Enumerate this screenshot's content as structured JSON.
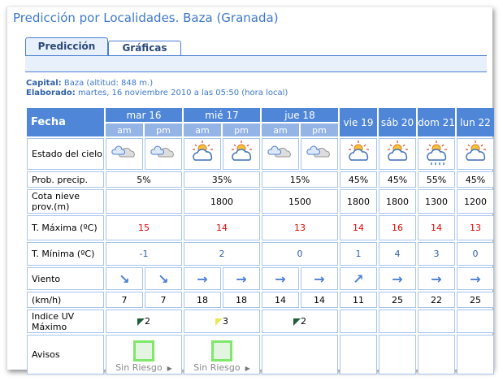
{
  "title": "Predicción por Localidades. Baza (Granada)",
  "tabs": [
    "Predicción",
    "Gráficas"
  ],
  "capital_label": "Capital:",
  "capital_value": "Baza (altitud: 848 m.)",
  "elaborado_label": "Elaborado:",
  "elaborado_value": "martes, 16 noviembre 2010 a las 05:50 (hora local)",
  "fecha_label": "Fecha",
  "days": [
    {
      "label": "mar 16",
      "split": true,
      "sub": [
        "am",
        "pm"
      ]
    },
    {
      "label": "mié 17",
      "split": true,
      "sub": [
        "am",
        "pm"
      ]
    },
    {
      "label": "jue 18",
      "split": true,
      "sub": [
        "am",
        "pm"
      ]
    },
    {
      "label": "vie 19"
    },
    {
      "label": "sáb 20"
    },
    {
      "label": "dom 21"
    },
    {
      "label": "lun 22"
    }
  ],
  "rows": {
    "sky": {
      "label": "Estado del cielo",
      "values": [
        "cloudy",
        "cloudy",
        "sun-cloud",
        "sun-cloud",
        "cloudy",
        "cloudy",
        "sun-cloud",
        "sun-cloud",
        "sun-cloud-rain",
        "sun-cloud"
      ]
    },
    "precip": {
      "label": "Prob. precip.",
      "values": [
        "5%",
        "35%",
        "15%",
        "45%",
        "45%",
        "55%",
        "45%"
      ]
    },
    "snow": {
      "label": "Cota nieve prov.(m)",
      "values": [
        "",
        "1800",
        "1500",
        "1800",
        "1800",
        "1300",
        "1200"
      ]
    },
    "tmax": {
      "label": "T. Máxima (ºC)",
      "values": [
        "15",
        "14",
        "13",
        "14",
        "16",
        "14",
        "13"
      ]
    },
    "tmin": {
      "label": "T. Mínima (ºC)",
      "values": [
        "-1",
        "2",
        "0",
        "1",
        "4",
        "3",
        "0"
      ]
    },
    "wind": {
      "label": "Viento",
      "values": [
        "↘",
        "↘",
        "→",
        "→",
        "→",
        "→",
        "↗",
        "→",
        "→",
        "→"
      ]
    },
    "kmh": {
      "label": "(km/h)",
      "values": [
        "7",
        "7",
        "18",
        "18",
        "14",
        "14",
        "11",
        "25",
        "22",
        "25"
      ]
    },
    "uv": {
      "label": "Indice UV Máximo",
      "values": [
        {
          "v": "2",
          "color": "#1f5e3c"
        },
        {
          "v": "3",
          "color": "#e8e85a"
        },
        {
          "v": "2",
          "color": "#1f5e3c"
        },
        null,
        null,
        null,
        null
      ]
    },
    "avisos": {
      "label": "Avisos",
      "values": [
        "Sin Riesgo",
        "Sin Riesgo",
        "",
        "",
        "",
        "",
        ""
      ]
    }
  },
  "colors": {
    "header": "#4f86d8",
    "subheader": "#94b4e6",
    "border": "#a8c4ec",
    "max": "#e00000",
    "min": "#2f5ea8"
  }
}
